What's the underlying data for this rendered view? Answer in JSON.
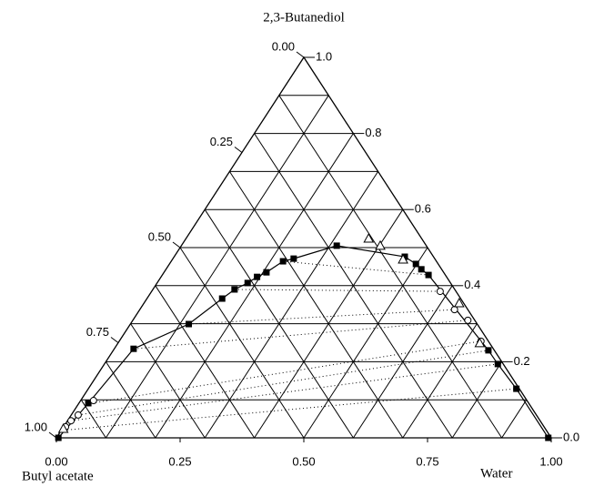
{
  "chart_data": {
    "type": "ternary",
    "top_label": "2,3-Butanediol",
    "left_label": "Butyl acetate",
    "right_label": "Water",
    "bottom_ticks": [
      {
        "value": 0,
        "label": "0.00"
      },
      {
        "value": 0.25,
        "label": "0.25"
      },
      {
        "value": 0.5,
        "label": "0.50"
      },
      {
        "value": 0.75,
        "label": "0.75"
      },
      {
        "value": 1,
        "label": "1.00"
      }
    ],
    "right_ticks": [
      {
        "value": 0,
        "label": "0.0"
      },
      0.2,
      0.4,
      0.6,
      0.8,
      {
        "value": 1,
        "label": "1.0"
      }
    ],
    "left_ticks": [
      {
        "value": 0,
        "label": "0.00"
      },
      0.25,
      {
        "value": 0.5,
        "label": "0.50"
      },
      0.75,
      {
        "value": 1,
        "label": "1.00"
      }
    ],
    "grid": [
      0.1,
      0.2,
      0.3,
      0.4,
      0.5,
      0.6,
      0.7,
      0.8,
      0.9
    ],
    "series": [
      {
        "marker": "square",
        "color": "#000000",
        "line": true,
        "water": [
          0.004,
          0.019,
          0.039,
          0.118,
          0.152,
          0.165,
          0.183,
          0.194,
          0.207,
          0.226,
          0.244,
          0.314,
          0.466,
          0.498,
          0.516,
          0.538,
          0.758,
          0.795,
          0.865,
          0.994
        ],
        "butanediol": [
          0,
          0.091,
          0.234,
          0.299,
          0.366,
          0.39,
          0.407,
          0.423,
          0.435,
          0.464,
          0.471,
          0.505,
          0.476,
          0.457,
          0.443,
          0.428,
          0.23,
          0.194,
          0.129,
          0
        ]
      },
      {
        "marker": "circle",
        "color": "#000000",
        "water": [
          0.004,
          0.007,
          0.014,
          0.026,
          0.583,
          0.636,
          0.677,
          0.731
        ],
        "butanediol": [
          0.029,
          0.045,
          0.06,
          0.098,
          0.385,
          0.337,
          0.309,
          0.254
        ]
      },
      {
        "marker": "triangle",
        "color": "#000000",
        "water": [
          0.002,
          0.369,
          0.402,
          0.466,
          0.637,
          0.731
        ],
        "butanediol": [
          0.024,
          0.524,
          0.505,
          0.469,
          0.354,
          0.249
        ]
      }
    ],
    "tie_lines": [
      [
        [
          0.005,
          0.02
        ],
        [
          0.865,
          0.129
        ]
      ],
      [
        [
          0.007,
          0.045
        ],
        [
          0.795,
          0.194
        ]
      ],
      [
        [
          0.014,
          0.06
        ],
        [
          0.758,
          0.23
        ]
      ],
      [
        [
          0.02,
          0.09
        ],
        [
          0.731,
          0.254
        ]
      ],
      [
        [
          0.04,
          0.234
        ],
        [
          0.677,
          0.309
        ]
      ],
      [
        [
          0.118,
          0.299
        ],
        [
          0.636,
          0.337
        ]
      ],
      [
        [
          0.165,
          0.39
        ],
        [
          0.583,
          0.385
        ]
      ],
      [
        [
          0.226,
          0.464
        ],
        [
          0.538,
          0.428
        ]
      ]
    ]
  }
}
